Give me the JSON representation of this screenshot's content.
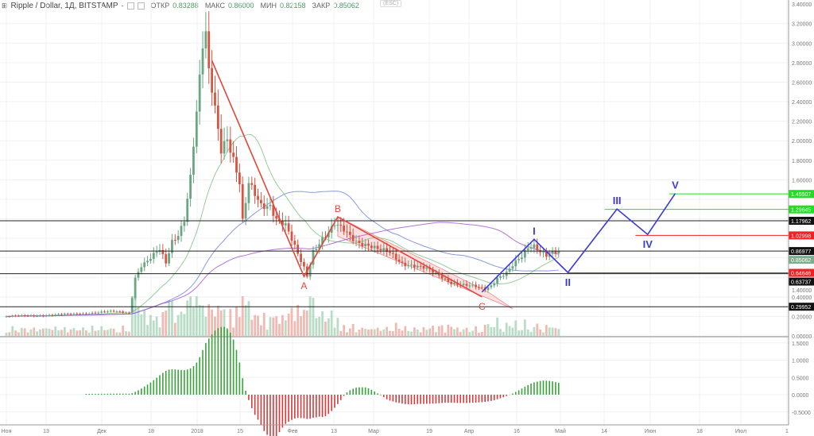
{
  "header": {
    "symbol": "Ripple / Dollar, 1Д, BITSTAMP",
    "dash": "-",
    "open_label": "ОТКР",
    "open": "0.83288",
    "high_label": "МАКС",
    "high": "0.86000",
    "low_label": "МИН",
    "low": "0.82158",
    "close_label": "ЗАКР",
    "close": "0.85062",
    "esc": "(ESC)"
  },
  "colors": {
    "up": "#6ba583",
    "down": "#d75442",
    "wave_abc": "#e0463a",
    "wave_impulse": "#3a3ad6",
    "green_level": "#22dd22",
    "red_level": "#ee2222"
  },
  "chart_data": {
    "type": "candlestick",
    "title": "Ripple / Dollar, 1Д, BITSTAMP",
    "price_axis": {
      "min": -0.05,
      "max": 3.45,
      "ticks": [
        "3.40000",
        "3.20000",
        "3.00000",
        "2.80000",
        "2.60000",
        "2.40000",
        "2.20000",
        "2.00000",
        "1.80000",
        "1.60000",
        "1.40000",
        "0.40000",
        "0.20000",
        "0.00000"
      ]
    },
    "osc_axis": {
      "ticks": [
        "1.5000",
        "1.0000",
        "0.5000",
        "0.0000",
        "-0.5000"
      ]
    },
    "time_axis": {
      "ticks": [
        "Ноя",
        "13",
        "Дек",
        "18",
        "2018",
        "15",
        "Фев",
        "13",
        "Мар",
        "19",
        "Апр",
        "16",
        "Май",
        "14",
        "Июн",
        "18",
        "Июл",
        "1"
      ]
    },
    "close_waypoints_day_price": [
      [
        0,
        0.2
      ],
      [
        12,
        0.21
      ],
      [
        25,
        0.23
      ],
      [
        35,
        0.25
      ],
      [
        40,
        0.24
      ],
      [
        41,
        0.4
      ],
      [
        42,
        0.6
      ],
      [
        44,
        0.72
      ],
      [
        46,
        0.76
      ],
      [
        50,
        0.88
      ],
      [
        52,
        0.75
      ],
      [
        54,
        0.98
      ],
      [
        56,
        1.05
      ],
      [
        58,
        1.2
      ],
      [
        60,
        1.62
      ],
      [
        61,
        1.95
      ],
      [
        62,
        2.25
      ],
      [
        63,
        2.6
      ],
      [
        64,
        2.95
      ],
      [
        65,
        3.05
      ],
      [
        66,
        2.7
      ],
      [
        67,
        2.55
      ],
      [
        68,
        2.35
      ],
      [
        70,
        1.95
      ],
      [
        72,
        2.05
      ],
      [
        74,
        1.8
      ],
      [
        76,
        1.55
      ],
      [
        77,
        1.15
      ],
      [
        79,
        1.55
      ],
      [
        81,
        1.45
      ],
      [
        83,
        1.35
      ],
      [
        86,
        1.35
      ],
      [
        88,
        1.2
      ],
      [
        91,
        1.12
      ],
      [
        94,
        0.9
      ],
      [
        97,
        0.7
      ],
      [
        98,
        0.62
      ],
      [
        100,
        0.88
      ],
      [
        103,
        1.0
      ],
      [
        105,
        1.05
      ],
      [
        107,
        1.13
      ],
      [
        110,
        1.08
      ],
      [
        114,
        0.98
      ],
      [
        118,
        0.93
      ],
      [
        121,
        0.88
      ],
      [
        125,
        0.85
      ],
      [
        129,
        0.75
      ],
      [
        133,
        0.72
      ],
      [
        137,
        0.68
      ],
      [
        141,
        0.62
      ],
      [
        145,
        0.55
      ],
      [
        149,
        0.52
      ],
      [
        153,
        0.5
      ],
      [
        156,
        0.48
      ],
      [
        158,
        0.52
      ],
      [
        160,
        0.6
      ],
      [
        163,
        0.65
      ],
      [
        166,
        0.75
      ],
      [
        168,
        0.8
      ],
      [
        170,
        0.9
      ],
      [
        172,
        0.93
      ],
      [
        174,
        0.88
      ],
      [
        176,
        0.84
      ],
      [
        178,
        0.86
      ],
      [
        180,
        0.85
      ]
    ],
    "levels": [
      {
        "price": 1.45507,
        "label": "1.45507",
        "kind": "green"
      },
      {
        "price": 1.29645,
        "label": "1.29645",
        "kind": "green"
      },
      {
        "price": 1.17962,
        "label": "1.17962",
        "kind": "black"
      },
      {
        "price": 1.02998,
        "label": "1.02998",
        "kind": "red"
      },
      {
        "price": 0.86977,
        "label": "0.86977",
        "kind": "black"
      },
      {
        "price": 0.85062,
        "label": "0.85062",
        "kind": "last"
      },
      {
        "price": 0.64646,
        "label": "0.64646",
        "kind": "red"
      },
      {
        "price": 0.63737,
        "label": "0.63737",
        "kind": "black"
      },
      {
        "price": 0.29952,
        "label": "0.29952",
        "kind": "black"
      }
    ],
    "corrective_wave": [
      {
        "label": "",
        "day": 67,
        "price": 2.82
      },
      {
        "label": "A",
        "day": 97,
        "price": 0.61
      },
      {
        "label": "B",
        "day": 108,
        "price": 1.22
      },
      {
        "label": "C",
        "day": 155,
        "price": 0.4
      }
    ],
    "impulse_wave": [
      {
        "label": "",
        "day": 155,
        "price": 0.45
      },
      {
        "label": "I",
        "day": 172,
        "price": 0.99
      },
      {
        "label": "II",
        "day": 183,
        "price": 0.65
      },
      {
        "label": "III",
        "day": 199,
        "price": 1.3
      },
      {
        "label": "IV",
        "day": 209,
        "price": 1.04
      },
      {
        "label": "V",
        "day": 218,
        "price": 1.46
      }
    ]
  }
}
